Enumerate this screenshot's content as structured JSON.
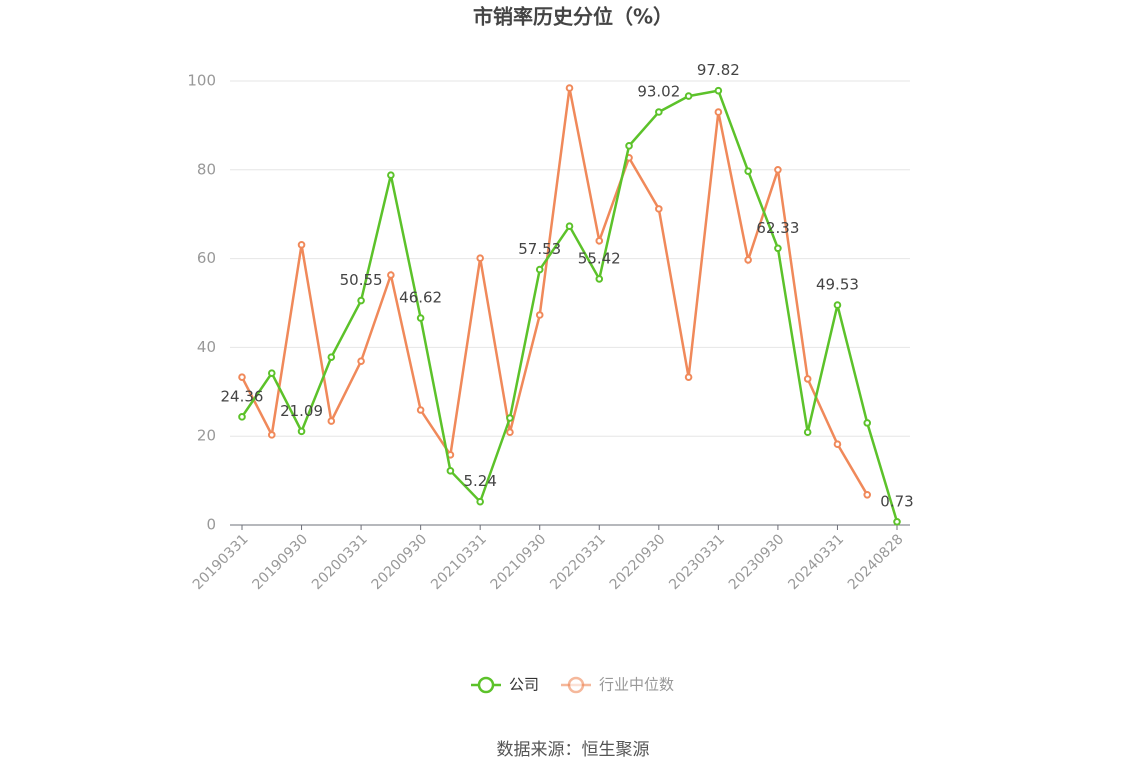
{
  "chart_data": {
    "type": "line",
    "title": "市销率历史分位（%）",
    "categories": [
      "20190331",
      null,
      "20190930",
      null,
      "20200331",
      null,
      "20200930",
      null,
      "20210331",
      null,
      "20210930",
      null,
      "20220331",
      null,
      "20220930",
      null,
      "20230331",
      null,
      "20230930",
      null,
      "20240331",
      null,
      "20240828"
    ],
    "series": [
      {
        "name": "公司",
        "color": "#5cc22a",
        "values": [
          24.36,
          34.2,
          21.09,
          37.8,
          50.55,
          78.8,
          46.62,
          12.2,
          5.24,
          24.1,
          57.53,
          67.3,
          55.42,
          85.4,
          93.02,
          96.6,
          97.82,
          79.7,
          62.33,
          20.9,
          49.53,
          23.0,
          0.73
        ]
      },
      {
        "name": "行业中位数",
        "color": "#f0895a",
        "values": [
          33.3,
          20.3,
          63.1,
          23.4,
          36.9,
          56.3,
          25.9,
          15.8,
          60.1,
          20.9,
          47.3,
          98.4,
          64.0,
          82.7,
          71.2,
          33.3,
          93.0,
          59.7,
          80.0,
          32.9,
          18.2,
          6.8,
          null
        ]
      }
    ],
    "ylim": [
      0,
      100
    ],
    "yticks": [
      0,
      20,
      40,
      60,
      80,
      100
    ],
    "grid": true,
    "source": "数据来源：恒生聚源"
  }
}
